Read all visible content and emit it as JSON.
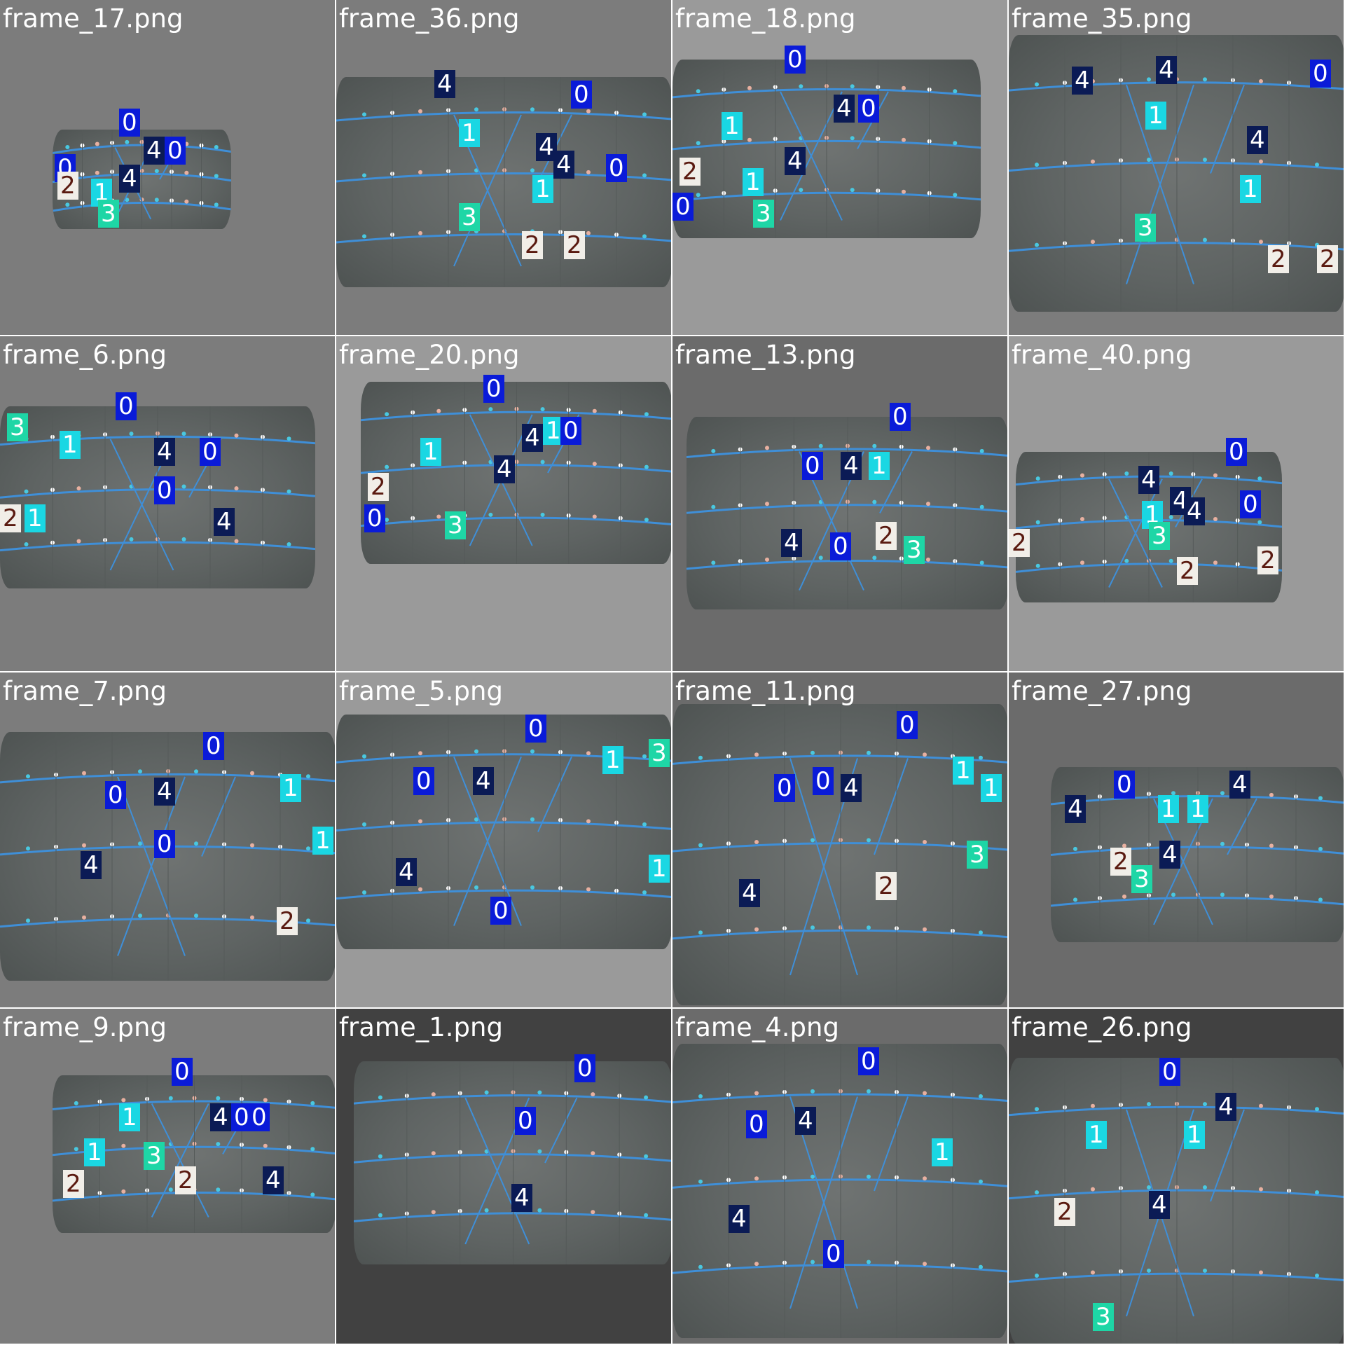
{
  "class_colors": {
    "0": {
      "bg": "#0a1bd8",
      "fg": "#ffffff"
    },
    "1": {
      "bg": "#1ad7e3",
      "fg": "#ffffff"
    },
    "2": {
      "bg": "#f1eee8",
      "fg": "#5a1a10"
    },
    "3": {
      "bg": "#1ed6a6",
      "fg": "#ffffff"
    },
    "4": {
      "bg": "#0b1b55",
      "fg": "#ffffff"
    }
  },
  "cell_backgrounds": [
    "#7c7c7c",
    "#6b6b6b",
    "#9a9a9a",
    "#414141"
  ],
  "frames": [
    {
      "name": "frame_17.png",
      "detections": [
        "0",
        "4",
        "0",
        "0",
        "2",
        "4",
        "1",
        "3"
      ]
    },
    {
      "name": "frame_36.png",
      "detections": [
        "4",
        "0",
        "1",
        "4",
        "4",
        "0",
        "1",
        "3",
        "2",
        "2"
      ]
    },
    {
      "name": "frame_18.png",
      "detections": [
        "0",
        "4",
        "0",
        "1",
        "4",
        "2",
        "1",
        "0",
        "3"
      ]
    },
    {
      "name": "frame_35.png",
      "detections": [
        "4",
        "4",
        "0",
        "1",
        "4",
        "1",
        "3",
        "2",
        "2"
      ]
    },
    {
      "name": "frame_6.png",
      "detections": [
        "3",
        "0",
        "1",
        "4",
        "0",
        "0",
        "2",
        "1",
        "4"
      ]
    },
    {
      "name": "frame_20.png",
      "detections": [
        "0",
        "4",
        "1",
        "0",
        "1",
        "4",
        "2",
        "0",
        "3"
      ]
    },
    {
      "name": "frame_13.png",
      "detections": [
        "0",
        "0",
        "4",
        "1",
        "4",
        "0",
        "2",
        "3"
      ]
    },
    {
      "name": "frame_40.png",
      "detections": [
        "0",
        "4",
        "4",
        "4",
        "0",
        "1",
        "3",
        "2",
        "2",
        "2"
      ]
    },
    {
      "name": "frame_7.png",
      "detections": [
        "0",
        "0",
        "4",
        "1",
        "0",
        "1",
        "4",
        "2"
      ]
    },
    {
      "name": "frame_5.png",
      "detections": [
        "0",
        "3",
        "0",
        "4",
        "1",
        "4",
        "1",
        "0"
      ]
    },
    {
      "name": "frame_11.png",
      "detections": [
        "0",
        "0",
        "0",
        "4",
        "1",
        "1",
        "3",
        "4",
        "2"
      ]
    },
    {
      "name": "frame_27.png",
      "detections": [
        "0",
        "4",
        "4",
        "1",
        "1",
        "2",
        "4",
        "3"
      ]
    },
    {
      "name": "frame_9.png",
      "detections": [
        "0",
        "1",
        "4",
        "0",
        "0",
        "1",
        "3",
        "2",
        "2",
        "4"
      ]
    },
    {
      "name": "frame_1.png",
      "detections": [
        "0",
        "0",
        "4"
      ]
    },
    {
      "name": "frame_4.png",
      "detections": [
        "0",
        "0",
        "4",
        "1",
        "4",
        "0"
      ]
    },
    {
      "name": "frame_26.png",
      "detections": [
        "0",
        "4",
        "1",
        "1",
        "4",
        "2",
        "3"
      ]
    }
  ]
}
